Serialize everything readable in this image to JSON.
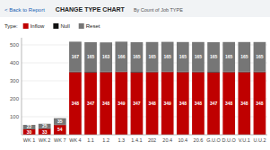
{
  "nav": {
    "back_label": "< Back to Report"
  },
  "chart_data": {
    "type": "bar",
    "stacked": true,
    "title": "CHANGE TYPE CHART",
    "subtitle": "By Count of Job TYPE",
    "legend_title": "Type:",
    "legend": "top",
    "categories": [
      "WK 1",
      "WK 2",
      "WK 7",
      "WK 4",
      "1.1",
      "1.2",
      "1.3",
      "1.4.1",
      "202",
      "20.4",
      "10.4",
      "20.6",
      "G.U.O",
      "D.U.O",
      "V.U.1",
      "U.U.2"
    ],
    "series": [
      {
        "name": "Inflow",
        "color": "#bf0000",
        "data_labels": true,
        "values": [
          30,
          33,
          54,
          348,
          347,
          348,
          349,
          347,
          348,
          349,
          348,
          348,
          347,
          348,
          348,
          348
        ]
      },
      {
        "name": "Null",
        "color": "#111111",
        "data_labels": false,
        "values": [
          3,
          3,
          3,
          3,
          3,
          3,
          3,
          3,
          3,
          3,
          3,
          3,
          3,
          3,
          3,
          3
        ]
      },
      {
        "name": "Reset",
        "color": "#767676",
        "data_labels": true,
        "values": [
          22,
          25,
          35,
          167,
          165,
          163,
          166,
          165,
          165,
          165,
          165,
          165,
          165,
          165,
          165,
          165
        ]
      }
    ],
    "ylim": [
      0,
      540
    ],
    "yticks": [
      100,
      200,
      300,
      400,
      500
    ],
    "grid": true
  }
}
